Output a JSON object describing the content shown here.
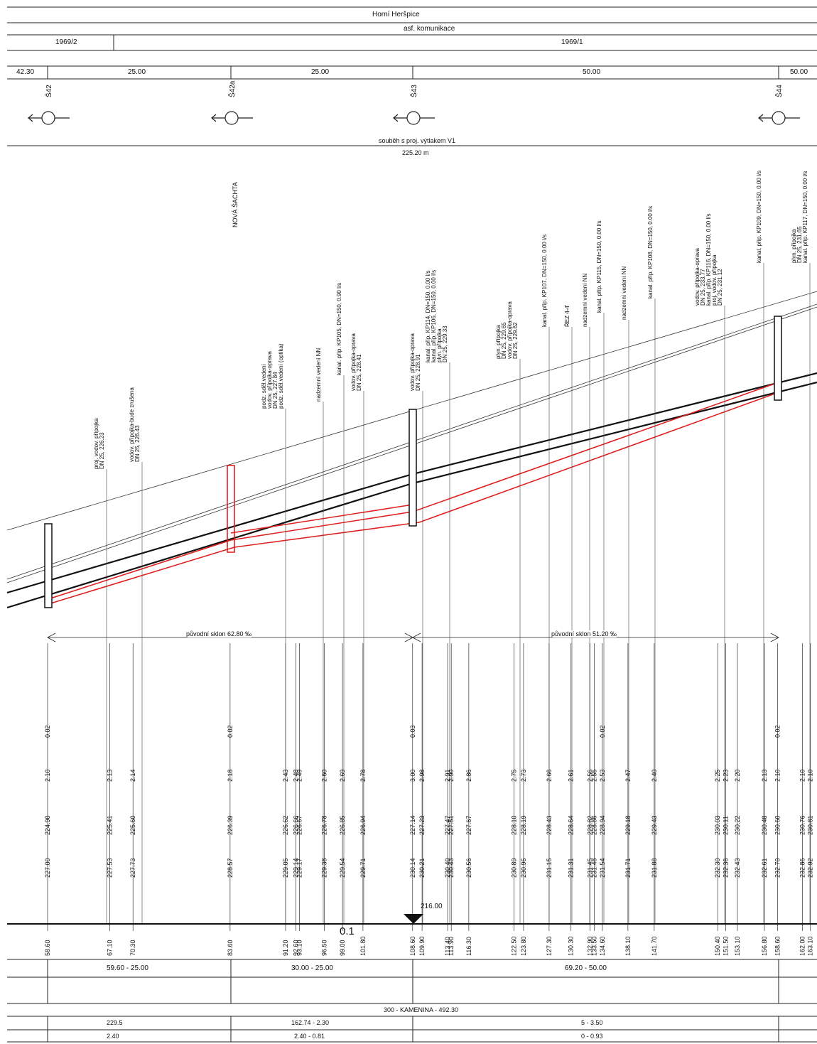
{
  "header": {
    "location": "Horní Heršpice",
    "surface": "asf. komunikace",
    "parcels": [
      "1969/2",
      "1969/1"
    ],
    "segment_lengths": [
      "42.30",
      "25.00",
      "25.00",
      "50.00",
      "50.00"
    ],
    "parallel_note": "souběh s proj. výtlakem V1",
    "parallel_length": "225.20 m"
  },
  "manholes": [
    {
      "id": "Š42",
      "color": "#111"
    },
    {
      "id": "Š42a",
      "color": "#111"
    },
    {
      "id": "Š43",
      "color": "#111"
    },
    {
      "id": "Š44",
      "color": "#111"
    }
  ],
  "annotations": {
    "new_shaft": "NOVÁ ŠACHTA",
    "slope_1": "původní sklon 62.80 ‰",
    "slope_2": "původní sklon 51.20 ‰",
    "datum": "216.00",
    "zero_mark": "0.1"
  },
  "utilities": [
    {
      "lines": [
        "proj. vodov. přípojka",
        "DN 25, 226.23"
      ]
    },
    {
      "lines": [
        "vodov. přípojka-bude zrušena",
        "DN 25, 226.43"
      ]
    },
    {
      "lines": [
        "podz. sděl.vedení",
        "vodov. přípojka-oprava",
        "DN 25, 227.84",
        "podz. sděl.vedení  (optika)"
      ]
    },
    {
      "lines": [
        "nadzemní vedení NN"
      ]
    },
    {
      "lines": [
        "kanal. příp. KP105, DN=150, 0.90 l/s"
      ]
    },
    {
      "lines": [
        "vodov. přípojka-oprava",
        "DN 25, 228.41"
      ]
    },
    {
      "lines": [
        "vodov. přípojka-oprava",
        "DN 25, 228.91"
      ]
    },
    {
      "lines": [
        "kanal. příp. KP114, DN=150, 0.00 l/s",
        "kanal. příp. KP106, DN=150, 0.00 l/s",
        "plyn. přípojka",
        "DN 25, 229.33"
      ]
    },
    {
      "lines": [
        "plyn. přípojka",
        "DN 25, 229.65",
        "vodov. přípojka-oprava",
        "DN 25, 229.62"
      ]
    },
    {
      "lines": [
        "kanal. příp. KP107, DN=150, 0.00 l/s"
      ]
    },
    {
      "lines": [
        "ŘEZ 4-4'"
      ]
    },
    {
      "lines": [
        "nadzemní vedení NN"
      ]
    },
    {
      "lines": [
        "kanal. příp. KP115, DN=150, 0.00 l/s"
      ]
    },
    {
      "lines": [
        "nadzemní vedení NN"
      ]
    },
    {
      "lines": [
        "kanal. příp. KP108, DN=150, 0.00 l/s"
      ]
    },
    {
      "lines": [
        "vodov. přípojka-oprava",
        "DN 25, 233.77",
        "kanal. příp. KP116, DN=150, 0.00 l/s",
        "proj. vodov. přípojka",
        "DN 25, 231.12"
      ]
    },
    {
      "lines": [
        "kanal. příp. KP109, DN=150, 0.00 l/s"
      ]
    },
    {
      "lines": [
        "plyn. přípojka",
        "DN 25, 231.65",
        "kanal. příp. KP117, DN=150, 0.00 l/s"
      ]
    }
  ],
  "chart_data": {
    "type": "table",
    "rows": {
      "slope_diff": [
        "0.02",
        "0.02",
        "0.03",
        "0.02",
        "0.02"
      ],
      "depth": [
        "2.10",
        "2.13",
        "2.14",
        "2.18",
        "2.43",
        "2.48",
        "2.49",
        "2.60",
        "2.69",
        "2.78",
        "3.00",
        "2.98",
        "2.91",
        "2.90",
        "2.86",
        "2.75",
        "2.73",
        "2.66",
        "2.61",
        "2.56",
        "2.55",
        "2.53",
        "2.47",
        "2.40",
        "2.25",
        "2.23",
        "2.20",
        "2.13",
        "2.10",
        "2.10",
        "2.10"
      ],
      "invert": [
        "224.90",
        "225.41",
        "225.60",
        "226.39",
        "226.62",
        "226.66",
        "226.67",
        "226.78",
        "226.85",
        "226.94",
        "227.14",
        "227.23",
        "227.47",
        "227.51",
        "227.67",
        "228.10",
        "228.19",
        "228.43",
        "228.64",
        "228.82",
        "228.86",
        "228.94",
        "229.18",
        "229.43",
        "230.03",
        "230.11",
        "230.22",
        "230.48",
        "230.60",
        "230.76",
        "230.81"
      ],
      "terrain": [
        "227.00",
        "227.53",
        "227.73",
        "228.57",
        "229.05",
        "229.14",
        "229.17",
        "229.38",
        "229.54",
        "229.71",
        "230.14",
        "230.21",
        "230.40",
        "230.43",
        "230.56",
        "230.89",
        "230.96",
        "231.15",
        "231.31",
        "231.45",
        "231.48",
        "231.54",
        "231.71",
        "231.88",
        "232.30",
        "232.36",
        "232.43",
        "232.61",
        "232.70",
        "232.86",
        "232.92"
      ],
      "chainage": [
        "58.60",
        "67.10",
        "70.30",
        "83.60",
        "91.20",
        "92.60",
        "93.10",
        "96.50",
        "99.00",
        "101.80",
        "108.60",
        "109.90",
        "113.40",
        "113.90",
        "116.30",
        "122.50",
        "123.80",
        "127.30",
        "130.30",
        "132.90",
        "133.50",
        "134.60",
        "138.10",
        "141.70",
        "150.40",
        "151.50",
        "153.10",
        "156.80",
        "158.60",
        "162.00",
        "163.10"
      ]
    }
  },
  "footer": {
    "sections": [
      "59.60 - 25.00",
      "30.00 - 25.00",
      "69.20 - 50.00"
    ],
    "pipe": "300 - KAMENINA - 492.30",
    "row3": [
      "229.5",
      "162.74 - 2.30",
      "5 - 3.50"
    ],
    "row4": [
      "2.40",
      "2.40 - 0.81",
      "0 - 0.93"
    ]
  }
}
